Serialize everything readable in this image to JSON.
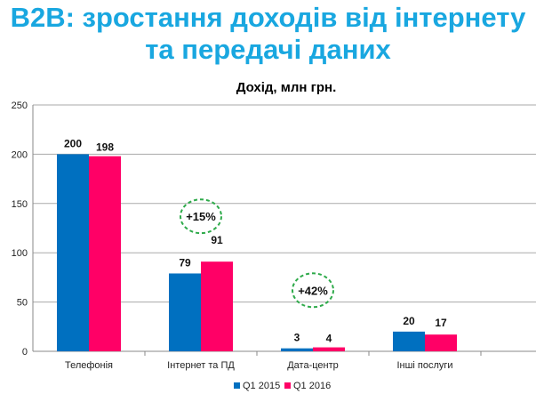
{
  "slide_title_line1": "B2B: зростання доходів від інтернету",
  "slide_title_line2": "та передачі даних",
  "chart_data": {
    "type": "bar",
    "title": "Дохід, млн грн.",
    "xlabel": "",
    "ylabel": "",
    "ylim": [
      0,
      250
    ],
    "yticks": [
      0,
      50,
      100,
      150,
      200,
      250
    ],
    "grid": true,
    "categories": [
      "Телефонія",
      "Інтернет та ПД",
      "Дата-центр",
      "Інші послуги"
    ],
    "series": [
      {
        "name": "Q1 2015",
        "color": "#0070c0",
        "values": [
          200,
          79,
          3,
          20
        ]
      },
      {
        "name": "Q1 2016",
        "color": "#ff0066",
        "values": [
          198,
          91,
          4,
          17
        ]
      }
    ],
    "legend_position": "bottom",
    "annotations": [
      {
        "text": "+15%",
        "category": "Інтернет та ПД",
        "y": 137
      },
      {
        "text": "+42%",
        "category": "Дата-центр",
        "y": 62
      }
    ]
  }
}
